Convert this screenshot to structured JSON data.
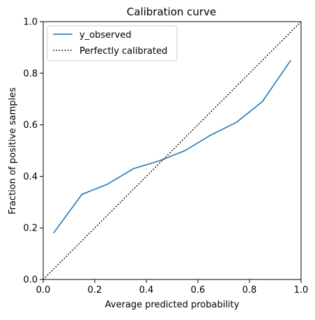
{
  "chart_data": {
    "type": "line",
    "title": "Calibration curve",
    "xlabel": "Average predicted probability",
    "ylabel": "Fraction of positive samples",
    "xlim": [
      0.0,
      1.0
    ],
    "ylim": [
      0.0,
      1.0
    ],
    "xticks": [
      "0.0",
      "0.2",
      "0.4",
      "0.6",
      "0.8",
      "1.0"
    ],
    "yticks": [
      "0.0",
      "0.2",
      "0.4",
      "0.6",
      "0.8",
      "1.0"
    ],
    "grid": false,
    "legend_position": "upper-left",
    "series": [
      {
        "name": "y_observed",
        "color": "#1f77b4",
        "style": "solid",
        "x": [
          0.04,
          0.15,
          0.25,
          0.35,
          0.45,
          0.55,
          0.65,
          0.75,
          0.85,
          0.96
        ],
        "y": [
          0.18,
          0.33,
          0.37,
          0.43,
          0.46,
          0.5,
          0.56,
          0.61,
          0.69,
          0.85
        ]
      },
      {
        "name": "Perfectly calibrated",
        "color": "#000000",
        "style": "dotted",
        "x": [
          0.0,
          1.0
        ],
        "y": [
          0.0,
          1.0
        ]
      }
    ]
  }
}
